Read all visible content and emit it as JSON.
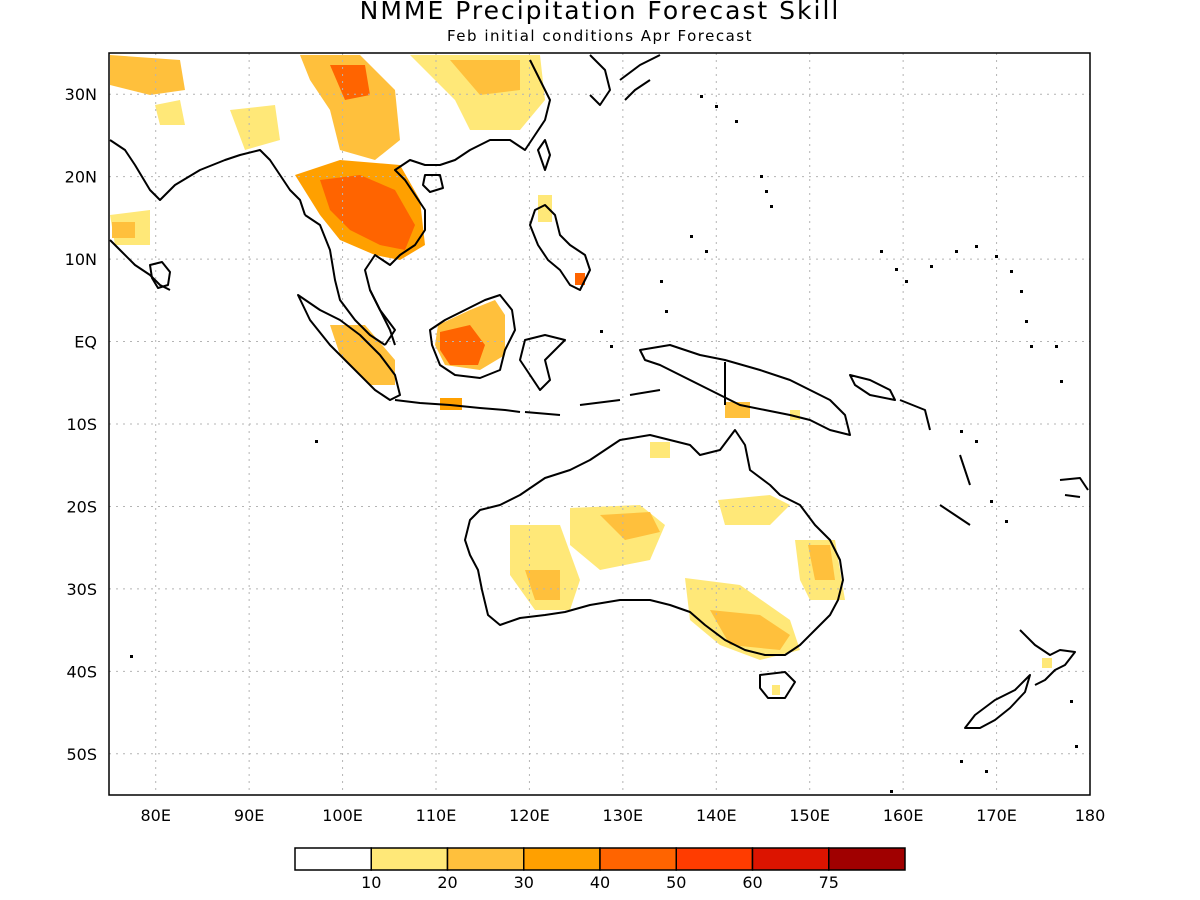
{
  "title": "NMME Precipitation Forecast Skill",
  "subtitle": "Feb initial conditions  Apr Forecast",
  "map": {
    "lon_range": [
      75,
      180
    ],
    "lat_range": [
      -55,
      35
    ],
    "lat_ticks": [
      {
        "lat": 30,
        "label": "30N"
      },
      {
        "lat": 20,
        "label": "20N"
      },
      {
        "lat": 10,
        "label": "10N"
      },
      {
        "lat": 0,
        "label": "EQ"
      },
      {
        "lat": -10,
        "label": "10S"
      },
      {
        "lat": -20,
        "label": "20S"
      },
      {
        "lat": -30,
        "label": "30S"
      },
      {
        "lat": -40,
        "label": "40S"
      },
      {
        "lat": -50,
        "label": "50S"
      }
    ],
    "lon_ticks": [
      {
        "lon": 80,
        "label": "80E"
      },
      {
        "lon": 90,
        "label": "90E"
      },
      {
        "lon": 100,
        "label": "100E"
      },
      {
        "lon": 110,
        "label": "110E"
      },
      {
        "lon": 120,
        "label": "120E"
      },
      {
        "lon": 130,
        "label": "130E"
      },
      {
        "lon": 140,
        "label": "140E"
      },
      {
        "lon": 150,
        "label": "150E"
      },
      {
        "lon": 160,
        "label": "160E"
      },
      {
        "lon": 170,
        "label": "170E"
      },
      {
        "lon": 180,
        "label": "180"
      }
    ]
  },
  "colorbar": {
    "colors": [
      "#ffffff",
      "#ffe878",
      "#ffc03c",
      "#ffa000",
      "#ff6400",
      "#ff3c00",
      "#dc1400",
      "#a00000"
    ],
    "labels": [
      "10",
      "20",
      "30",
      "40",
      "50",
      "60",
      "75"
    ]
  },
  "palette": {
    "c10": "#ffe878",
    "c20": "#ffc03c",
    "c30": "#ffa000",
    "c40": "#ff6400",
    "c50": "#ff3c00",
    "coast": "#000000"
  }
}
